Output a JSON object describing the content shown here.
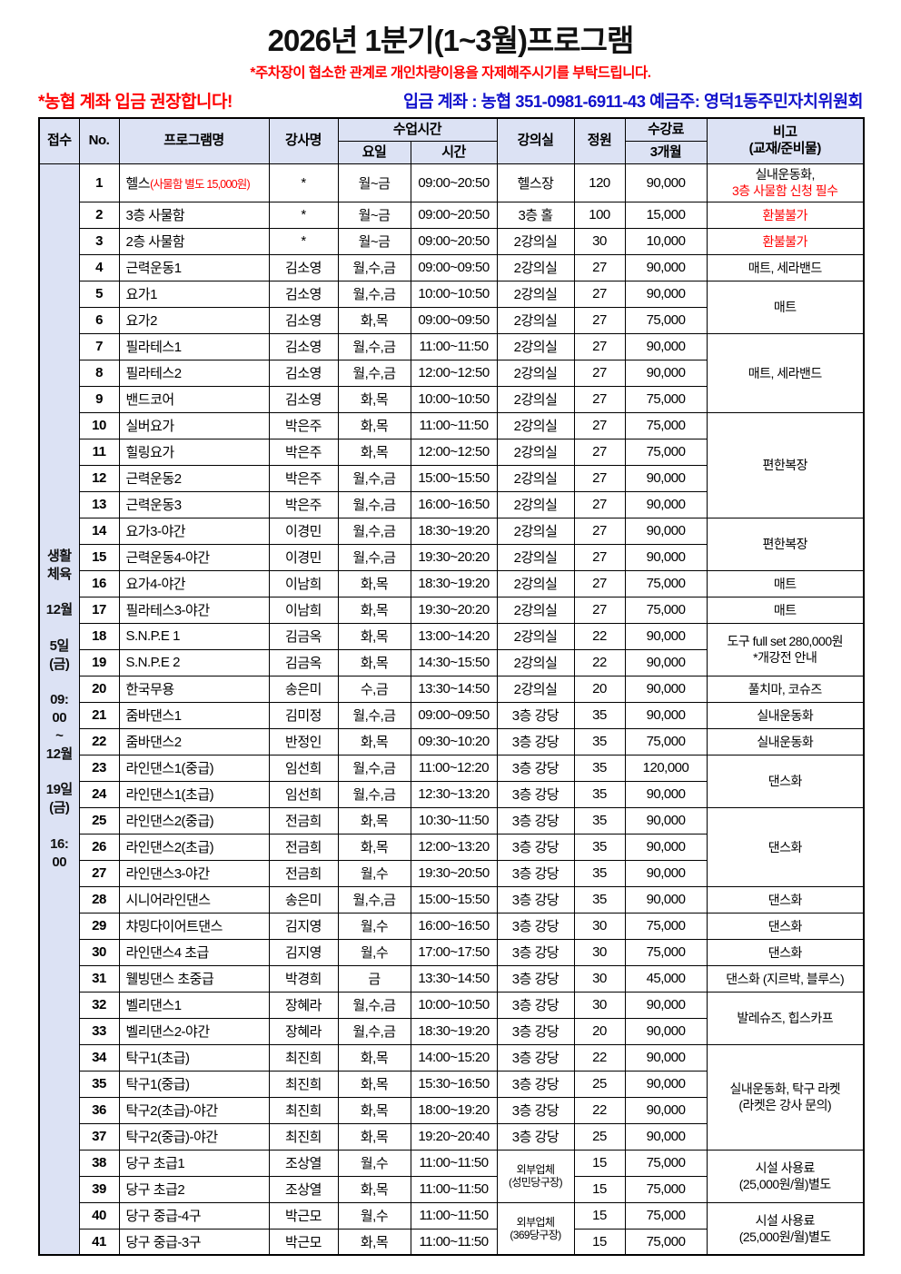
{
  "page": {
    "title": "2026년 1분기(1~3월)프로그램",
    "subtitle": "*주차장이 협소한 관계로 개인차량이용을 자제해주시기를 부탁드립니다.",
    "left_notice": "*농협 계좌 입금 권장합니다!",
    "account_notice": "입금 계좌 : 농협 351-0981-6911-43 예금주: 영덕1동주민자치위원회"
  },
  "colors": {
    "accent_red": "#ff0000",
    "accent_blue": "#1212cc",
    "header_bg": "#dce2f4",
    "border": "#000000"
  },
  "table": {
    "headers": {
      "reception": "접수",
      "no": "No.",
      "program": "프로그램명",
      "teacher": "강사명",
      "class_time": "수업시간",
      "day": "요일",
      "time": "시간",
      "room": "강의실",
      "capacity": "정원",
      "fee": "수강료",
      "fee_sub": "3개월",
      "note": "비고",
      "note_sub": "(교재/준비물)"
    },
    "reception_text": "생활\n체육\n\n12월\n\n5일\n(금)\n\n09:\n00\n~\n12월\n\n19일\n(금)\n\n16:\n00",
    "rows": [
      {
        "no": "1",
        "name": "헬스",
        "name_red": "(사물함 별도 15,000원)",
        "teacher": "*",
        "day": "월~금",
        "time": "09:00~20:50",
        "room": "헬스장",
        "cap": "120",
        "fee": "90,000",
        "tall": true,
        "note": {
          "span": 1,
          "lines": [
            {
              "t": "실내운동화,"
            },
            {
              "t": "3층 사물함 신청 필수",
              "r": true
            }
          ]
        }
      },
      {
        "no": "2",
        "name": "3층 사물함",
        "teacher": "*",
        "day": "월~금",
        "time": "09:00~20:50",
        "room": "3층 홀",
        "cap": "100",
        "fee": "15,000",
        "note": {
          "span": 1,
          "lines": [
            {
              "t": "환불불가",
              "r": true
            }
          ]
        }
      },
      {
        "no": "3",
        "name": "2층 사물함",
        "teacher": "*",
        "day": "월~금",
        "time": "09:00~20:50",
        "room": "2강의실",
        "cap": "30",
        "fee": "10,000",
        "note": {
          "span": 1,
          "lines": [
            {
              "t": "환불불가",
              "r": true
            }
          ]
        }
      },
      {
        "no": "4",
        "name": "근력운동1",
        "teacher": "김소영",
        "day": "월,수,금",
        "time": "09:00~09:50",
        "room": "2강의실",
        "cap": "27",
        "fee": "90,000",
        "note": {
          "span": 1,
          "lines": [
            {
              "t": "매트, 세라밴드"
            }
          ]
        }
      },
      {
        "no": "5",
        "name": "요가1",
        "teacher": "김소영",
        "day": "월,수,금",
        "time": "10:00~10:50",
        "room": "2강의실",
        "cap": "27",
        "fee": "90,000",
        "note": {
          "span": 2,
          "lines": [
            {
              "t": "매트"
            }
          ]
        }
      },
      {
        "no": "6",
        "name": "요가2",
        "teacher": "김소영",
        "day": "화,목",
        "time": "09:00~09:50",
        "room": "2강의실",
        "cap": "27",
        "fee": "75,000"
      },
      {
        "no": "7",
        "name": "필라테스1",
        "teacher": "김소영",
        "day": "월,수,금",
        "time": "11:00~11:50",
        "room": "2강의실",
        "cap": "27",
        "fee": "90,000",
        "note": {
          "span": 3,
          "lines": [
            {
              "t": "매트, 세라밴드"
            }
          ]
        }
      },
      {
        "no": "8",
        "name": "필라테스2",
        "teacher": "김소영",
        "day": "월,수,금",
        "time": "12:00~12:50",
        "room": "2강의실",
        "cap": "27",
        "fee": "90,000"
      },
      {
        "no": "9",
        "name": "밴드코어",
        "teacher": "김소영",
        "day": "화,목",
        "time": "10:00~10:50",
        "room": "2강의실",
        "cap": "27",
        "fee": "75,000"
      },
      {
        "no": "10",
        "name": "실버요가",
        "teacher": "박은주",
        "day": "화,목",
        "time": "11:00~11:50",
        "room": "2강의실",
        "cap": "27",
        "fee": "75,000",
        "note": {
          "span": 4,
          "lines": [
            {
              "t": "편한복장"
            }
          ]
        }
      },
      {
        "no": "11",
        "name": "힐링요가",
        "teacher": "박은주",
        "day": "화,목",
        "time": "12:00~12:50",
        "room": "2강의실",
        "cap": "27",
        "fee": "75,000"
      },
      {
        "no": "12",
        "name": "근력운동2",
        "teacher": "박은주",
        "day": "월,수,금",
        "time": "15:00~15:50",
        "room": "2강의실",
        "cap": "27",
        "fee": "90,000"
      },
      {
        "no": "13",
        "name": "근력운동3",
        "teacher": "박은주",
        "day": "월,수,금",
        "time": "16:00~16:50",
        "room": "2강의실",
        "cap": "27",
        "fee": "90,000"
      },
      {
        "no": "14",
        "name": "요가3-야간",
        "teacher": "이경민",
        "day": "월,수,금",
        "time": "18:30~19:20",
        "room": "2강의실",
        "cap": "27",
        "fee": "90,000",
        "note": {
          "span": 2,
          "lines": [
            {
              "t": "편한복장"
            }
          ]
        }
      },
      {
        "no": "15",
        "name": "근력운동4-야간",
        "teacher": "이경민",
        "day": "월,수,금",
        "time": "19:30~20:20",
        "room": "2강의실",
        "cap": "27",
        "fee": "90,000"
      },
      {
        "no": "16",
        "name": "요가4-야간",
        "teacher": "이남희",
        "day": "화,목",
        "time": "18:30~19:20",
        "room": "2강의실",
        "cap": "27",
        "fee": "75,000",
        "note": {
          "span": 1,
          "lines": [
            {
              "t": "매트"
            }
          ]
        }
      },
      {
        "no": "17",
        "name": "필라테스3-야간",
        "teacher": "이남희",
        "day": "화,목",
        "time": "19:30~20:20",
        "room": "2강의실",
        "cap": "27",
        "fee": "75,000",
        "note": {
          "span": 1,
          "lines": [
            {
              "t": "매트"
            }
          ]
        }
      },
      {
        "no": "18",
        "name": "S.N.P.E 1",
        "teacher": "김금옥",
        "day": "화,목",
        "time": "13:00~14:20",
        "room": "2강의실",
        "cap": "22",
        "fee": "90,000",
        "note": {
          "span": 2,
          "lines": [
            {
              "t": "도구 full set 280,000원"
            },
            {
              "t": "*개강전 안내"
            }
          ]
        }
      },
      {
        "no": "19",
        "name": "S.N.P.E 2",
        "teacher": "김금옥",
        "day": "화,목",
        "time": "14:30~15:50",
        "room": "2강의실",
        "cap": "22",
        "fee": "90,000"
      },
      {
        "no": "20",
        "name": "한국무용",
        "teacher": "송은미",
        "day": "수,금",
        "time": "13:30~14:50",
        "room": "2강의실",
        "cap": "20",
        "fee": "90,000",
        "note": {
          "span": 1,
          "lines": [
            {
              "t": "풀치마, 코슈즈"
            }
          ]
        }
      },
      {
        "no": "21",
        "name": "줌바댄스1",
        "teacher": "김미정",
        "day": "월,수,금",
        "time": "09:00~09:50",
        "room": "3층 강당",
        "cap": "35",
        "fee": "90,000",
        "note": {
          "span": 1,
          "lines": [
            {
              "t": "실내운동화"
            }
          ]
        }
      },
      {
        "no": "22",
        "name": "줌바댄스2",
        "teacher": "반정인",
        "day": "화,목",
        "time": "09:30~10:20",
        "room": "3층 강당",
        "cap": "35",
        "fee": "75,000",
        "note": {
          "span": 1,
          "lines": [
            {
              "t": "실내운동화"
            }
          ]
        }
      },
      {
        "no": "23",
        "name": "라인댄스1(중급)",
        "teacher": "임선희",
        "day": "월,수,금",
        "time": "11:00~12:20",
        "room": "3층 강당",
        "cap": "35",
        "fee": "120,000",
        "note": {
          "span": 2,
          "lines": [
            {
              "t": "댄스화"
            }
          ]
        }
      },
      {
        "no": "24",
        "name": "라인댄스1(초급)",
        "teacher": "임선희",
        "day": "월,수,금",
        "time": "12:30~13:20",
        "room": "3층 강당",
        "cap": "35",
        "fee": "90,000"
      },
      {
        "no": "25",
        "name": "라인댄스2(중급)",
        "teacher": "전금희",
        "day": "화,목",
        "time": "10:30~11:50",
        "room": "3층 강당",
        "cap": "35",
        "fee": "90,000",
        "note": {
          "span": 3,
          "lines": [
            {
              "t": "댄스화"
            }
          ]
        }
      },
      {
        "no": "26",
        "name": "라인댄스2(초급)",
        "teacher": "전금희",
        "day": "화,목",
        "time": "12:00~13:20",
        "room": "3층 강당",
        "cap": "35",
        "fee": "90,000"
      },
      {
        "no": "27",
        "name": "라인댄스3-야간",
        "teacher": "전금희",
        "day": "월,수",
        "time": "19:30~20:50",
        "room": "3층 강당",
        "cap": "35",
        "fee": "90,000"
      },
      {
        "no": "28",
        "name": "시니어라인댄스",
        "teacher": "송은미",
        "day": "월,수,금",
        "time": "15:00~15:50",
        "room": "3층 강당",
        "cap": "35",
        "fee": "90,000",
        "note": {
          "span": 1,
          "lines": [
            {
              "t": "댄스화"
            }
          ]
        }
      },
      {
        "no": "29",
        "name": "챠밍다이어트댄스",
        "teacher": "김지영",
        "day": "월,수",
        "time": "16:00~16:50",
        "room": "3층 강당",
        "cap": "30",
        "fee": "75,000",
        "note": {
          "span": 1,
          "lines": [
            {
              "t": "댄스화"
            }
          ]
        }
      },
      {
        "no": "30",
        "name": "라인댄스4 초급",
        "teacher": "김지영",
        "day": "월,수",
        "time": "17:00~17:50",
        "room": "3층 강당",
        "cap": "30",
        "fee": "75,000",
        "note": {
          "span": 1,
          "lines": [
            {
              "t": "댄스화"
            }
          ]
        }
      },
      {
        "no": "31",
        "name": "웰빙댄스 초중급",
        "teacher": "박경희",
        "day": "금",
        "time": "13:30~14:50",
        "room": "3층 강당",
        "cap": "30",
        "fee": "45,000",
        "note": {
          "span": 1,
          "lines": [
            {
              "t": "댄스화 (지르박, 블루스)"
            }
          ]
        }
      },
      {
        "no": "32",
        "name": "벨리댄스1",
        "teacher": "장혜라",
        "day": "월,수,금",
        "time": "10:00~10:50",
        "room": "3층 강당",
        "cap": "30",
        "fee": "90,000",
        "note": {
          "span": 2,
          "lines": [
            {
              "t": "발레슈즈, 힙스카프"
            }
          ]
        }
      },
      {
        "no": "33",
        "name": "벨리댄스2-야간",
        "teacher": "장혜라",
        "day": "월,수,금",
        "time": "18:30~19:20",
        "room": "3층 강당",
        "cap": "20",
        "fee": "90,000"
      },
      {
        "no": "34",
        "name": "탁구1(초급)",
        "teacher": "최진희",
        "day": "화,목",
        "time": "14:00~15:20",
        "room": "3층 강당",
        "cap": "22",
        "fee": "90,000",
        "note": {
          "span": 4,
          "lines": [
            {
              "t": "실내운동화, 탁구 라켓"
            },
            {
              "t": "(라켓은 강사 문의)"
            }
          ]
        }
      },
      {
        "no": "35",
        "name": "탁구1(중급)",
        "teacher": "최진희",
        "day": "화,목",
        "time": "15:30~16:50",
        "room": "3층 강당",
        "cap": "25",
        "fee": "90,000"
      },
      {
        "no": "36",
        "name": "탁구2(초급)-야간",
        "teacher": "최진희",
        "day": "화,목",
        "time": "18:00~19:20",
        "room": "3층 강당",
        "cap": "22",
        "fee": "90,000"
      },
      {
        "no": "37",
        "name": "탁구2(중급)-야간",
        "teacher": "최진희",
        "day": "화,목",
        "time": "19:20~20:40",
        "room": "3층 강당",
        "cap": "25",
        "fee": "90,000"
      },
      {
        "no": "38",
        "name": "당구 초급1",
        "teacher": "조상열",
        "day": "월,수",
        "time": "11:00~11:50",
        "room_cell": {
          "span": 2,
          "lines": [
            "외부업체",
            "(성민당구장)"
          ]
        },
        "cap": "15",
        "fee": "75,000",
        "note": {
          "span": 2,
          "lines": [
            {
              "t": "시설 사용료"
            },
            {
              "t": "(25,000원/월)별도"
            }
          ]
        }
      },
      {
        "no": "39",
        "name": "당구 초급2",
        "teacher": "조상열",
        "day": "화,목",
        "time": "11:00~11:50",
        "cap": "15",
        "fee": "75,000"
      },
      {
        "no": "40",
        "name": "당구 중급-4구",
        "teacher": "박근모",
        "day": "월,수",
        "time": "11:00~11:50",
        "room_cell": {
          "span": 2,
          "lines": [
            "외부업체",
            "(369당구장)"
          ]
        },
        "cap": "15",
        "fee": "75,000",
        "note": {
          "span": 2,
          "lines": [
            {
              "t": "시설 사용료"
            },
            {
              "t": "(25,000원/월)별도"
            }
          ]
        }
      },
      {
        "no": "41",
        "name": "당구 중급-3구",
        "teacher": "박근모",
        "day": "화,목",
        "time": "11:00~11:50",
        "cap": "15",
        "fee": "75,000"
      }
    ]
  }
}
